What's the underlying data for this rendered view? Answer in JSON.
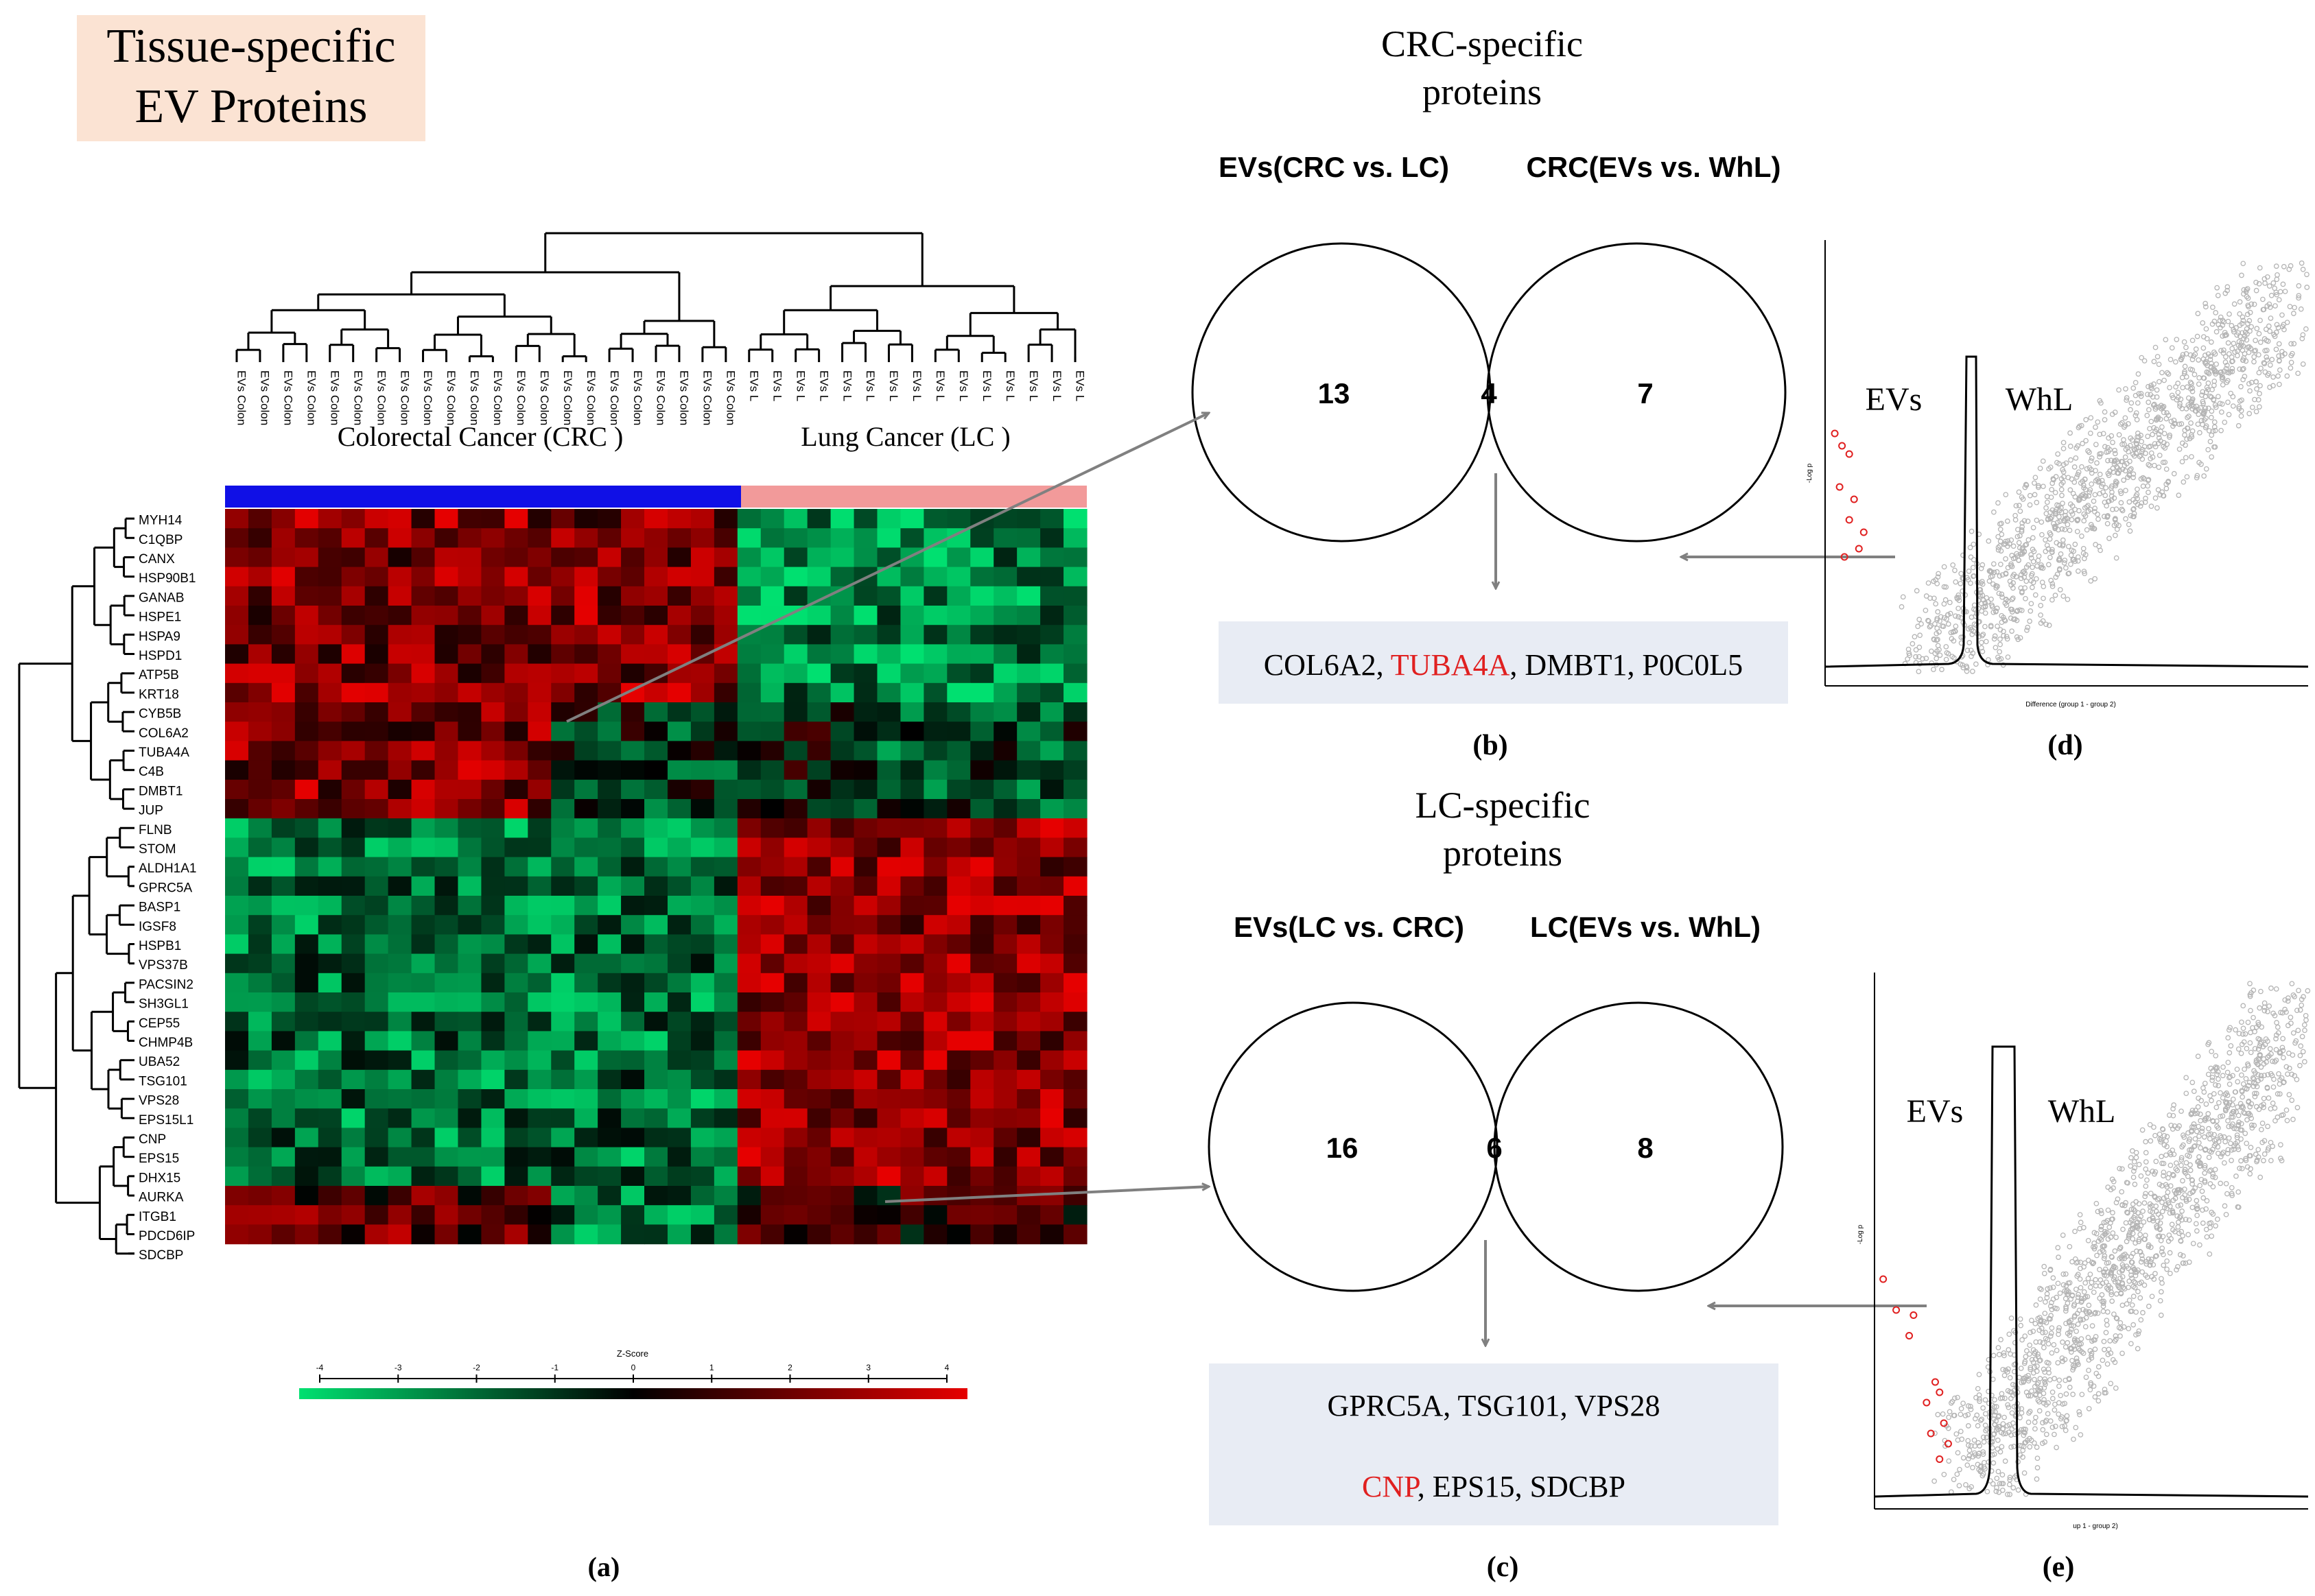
{
  "title_box": {
    "line1": "Tissue-specific",
    "line2": "EV Proteins",
    "bg_color": "#fbe3d3"
  },
  "heatmap": {
    "group_labels": {
      "crc": "Colorectal Cancer (CRC )",
      "lc": "Lung Cancer (LC )"
    },
    "sample_label_crc": "EVs Colon",
    "sample_label_lc": "EVs L",
    "crc_sample_count": 22,
    "lc_sample_count": 15,
    "bar_colors": {
      "crc": "#1010e6",
      "lc": "#f29a9a"
    },
    "genes": [
      "MYH14",
      "C1QBP",
      "CANX",
      "HSP90B1",
      "GANAB",
      "HSPE1",
      "HSPA9",
      "HSPD1",
      "ATP5B",
      "KRT18",
      "CYB5B",
      "COL6A2",
      "TUBA4A",
      "C4B",
      "DMBT1",
      "JUP",
      "FLNB",
      "STOM",
      "ALDH1A1",
      "GPRC5A",
      "BASP1",
      "IGSF8",
      "HSPB1",
      "VPS37B",
      "PACSIN2",
      "SH3GL1",
      "CEP55",
      "CHMP4B",
      "UBA52",
      "TSG101",
      "VPS28",
      "EPS15L1",
      "CNP",
      "EPS15",
      "DHX15",
      "AURKA",
      "ITGB1",
      "PDCD6IP",
      "SDCBP"
    ],
    "colors": {
      "high": "#e60000",
      "mid": "#000000",
      "low": "#00e070"
    },
    "scale_label": "Z-Score",
    "scale_ticks": [
      "-4",
      "-3",
      "-2",
      "-1",
      "0",
      "1",
      "2",
      "3",
      "4"
    ],
    "caption": "(a)"
  },
  "venn_crc": {
    "title_line1": "CRC-specific",
    "title_line2": "proteins",
    "left_label": "EVs(CRC vs. LC)",
    "right_label": "CRC(EVs vs. WhL)",
    "left_only": "13",
    "overlap": "4",
    "right_only": "7",
    "proteins": [
      "COL6A2",
      "TUBA4A",
      "DMBT1",
      "P0C0L5"
    ],
    "highlight": "TUBA4A",
    "caption": "(b)"
  },
  "venn_lc": {
    "title_line1": "LC-specific",
    "title_line2": "proteins",
    "left_label": "EVs(LC vs. CRC)",
    "right_label": "LC(EVs vs. WhL)",
    "left_only": "16",
    "overlap": "6",
    "right_only": "8",
    "proteins_line1": [
      "GPRC5A",
      "TSG101",
      "VPS28"
    ],
    "proteins_line2": [
      "CNP",
      "EPS15",
      "SDCBP"
    ],
    "highlight": "CNP",
    "caption": "(c)"
  },
  "volcano_d": {
    "left_label": "EVs",
    "right_label": "WhL",
    "xlabel": "Difference (group 1 - group 2)",
    "ylabel": "-Log p",
    "caption": "(d)"
  },
  "volcano_e": {
    "left_label": "EVs",
    "right_label": "WhL",
    "xlabel": "up 1 - group 2)",
    "ylabel": "-Log p",
    "caption": "(e)"
  },
  "colors": {
    "box_bg": "#e8ecf4",
    "highlight": "#e02020",
    "arrow": "#808080",
    "point": "#b4b4b4"
  }
}
